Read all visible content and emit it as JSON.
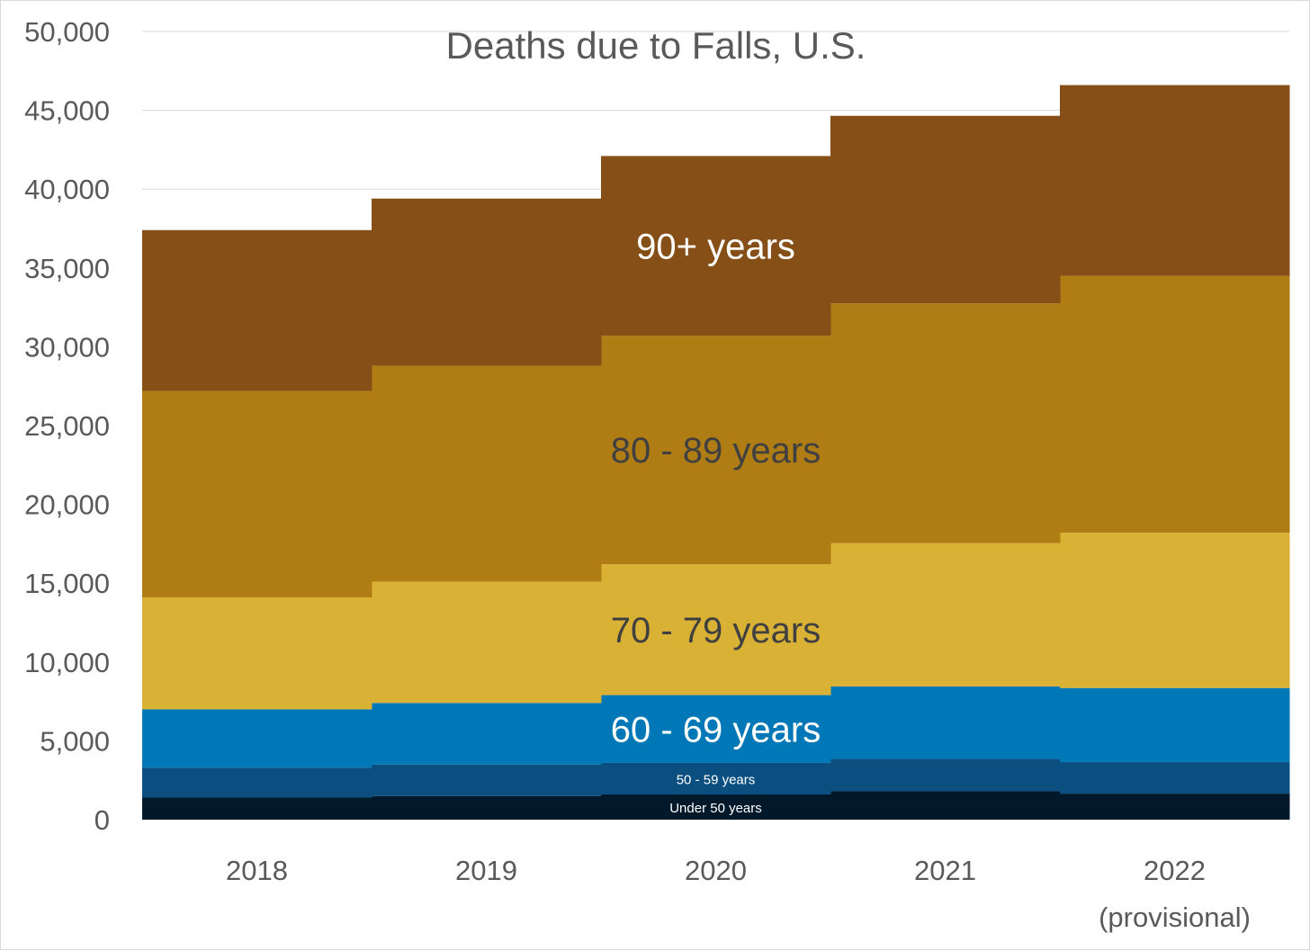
{
  "chart_data": {
    "type": "area",
    "stacked": true,
    "step": true,
    "title": "Deaths due to Falls, U.S.",
    "xlabel": "",
    "ylabel": "",
    "ylim": [
      0,
      50000
    ],
    "yticks": [
      "0",
      "5,000",
      "10,000",
      "15,000",
      "20,000",
      "25,000",
      "30,000",
      "35,000",
      "40,000",
      "45,000",
      "50,000"
    ],
    "categories": [
      {
        "year": "2018",
        "note": ""
      },
      {
        "year": "2019",
        "note": ""
      },
      {
        "year": "2020",
        "note": ""
      },
      {
        "year": "2021",
        "note": ""
      },
      {
        "year": "2022",
        "note": "(provisional)"
      }
    ],
    "grid": "horizontal",
    "legend": "none (inline labels)",
    "series": [
      {
        "name": "Under 50 years",
        "color": "#02192B",
        "label_color": "#ffffff",
        "label_size": "small",
        "values": [
          1400,
          1500,
          1600,
          1800,
          1650
        ]
      },
      {
        "name": "50 - 59 years",
        "color": "#0B4F80",
        "label_color": "#ffffff",
        "label_size": "small",
        "values": [
          1900,
          2000,
          2000,
          2050,
          2000
        ]
      },
      {
        "name": "60 - 69 years",
        "color": "#0077B6",
        "label_color": "#ffffff",
        "label_size": "big",
        "values": [
          3700,
          3900,
          4300,
          4600,
          4700
        ]
      },
      {
        "name": "70 - 79 years",
        "color": "#D9B134",
        "label_color": "#404040",
        "label_size": "big",
        "values": [
          7100,
          7700,
          8300,
          9100,
          9850
        ]
      },
      {
        "name": "80 - 89 years",
        "color": "#B07C14",
        "label_color": "#404040",
        "label_size": "big",
        "values": [
          13100,
          13700,
          14500,
          15200,
          16300
        ]
      },
      {
        "name": "90+ years",
        "color": "#854F17",
        "label_color": "#ffffff",
        "label_size": "big",
        "values": [
          10200,
          10600,
          11400,
          11900,
          12100
        ]
      }
    ]
  }
}
